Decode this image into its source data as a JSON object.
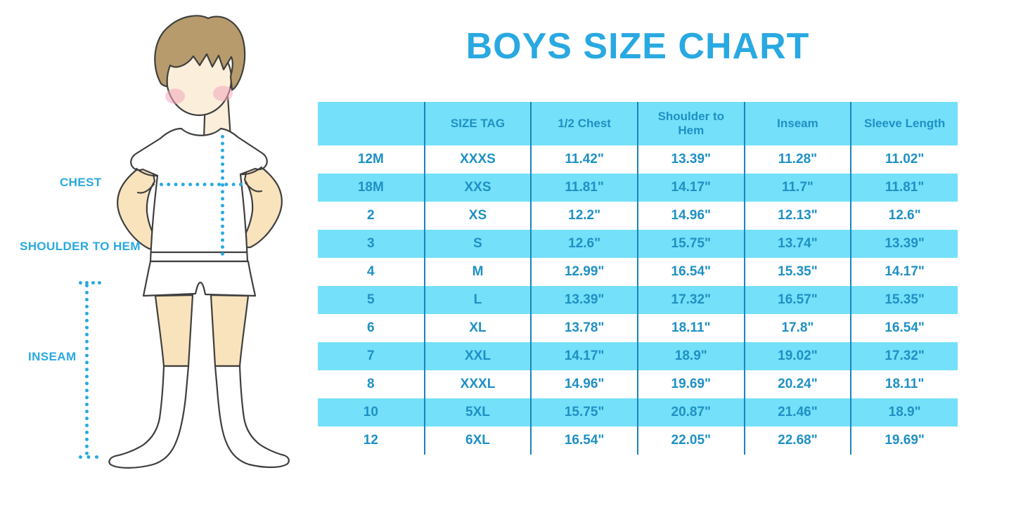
{
  "title": "BOYS SIZE CHART",
  "figure": {
    "labels": {
      "chest": "CHEST",
      "shoulder_to_hem": "SHOULDER TO HEM",
      "inseam": "INSEAM"
    }
  },
  "colors": {
    "title_blue": "#29A9E1",
    "table_band": "#74E0F9",
    "table_text": "#1E90C4",
    "divider": "#1A84BC",
    "dotted_line": "#29A9E1",
    "figure_outline": "#3F3F3F",
    "figure_skin": "#F8E3BC",
    "figure_face": "#FBEEDA",
    "figure_hair": "#B79B6C",
    "figure_blush": "#F2A7BC"
  },
  "chart_data": {
    "type": "table",
    "title": "BOYS SIZE CHART",
    "units": "inches",
    "columns": [
      "",
      "SIZE TAG",
      "1/2 Chest",
      "Shoulder to Hem",
      "Inseam",
      "Sleeve Length"
    ],
    "rows": [
      [
        "12M",
        "XXXS",
        "11.42\"",
        "13.39\"",
        "11.28\"",
        "11.02\""
      ],
      [
        "18M",
        "XXS",
        "11.81\"",
        "14.17\"",
        "11.7\"",
        "11.81\""
      ],
      [
        "2",
        "XS",
        "12.2\"",
        "14.96\"",
        "12.13\"",
        "12.6\""
      ],
      [
        "3",
        "S",
        "12.6\"",
        "15.75\"",
        "13.74\"",
        "13.39\""
      ],
      [
        "4",
        "M",
        "12.99\"",
        "16.54\"",
        "15.35\"",
        "14.17\""
      ],
      [
        "5",
        "L",
        "13.39\"",
        "17.32\"",
        "16.57\"",
        "15.35\""
      ],
      [
        "6",
        "XL",
        "13.78\"",
        "18.11\"",
        "17.8\"",
        "16.54\""
      ],
      [
        "7",
        "XXL",
        "14.17\"",
        "18.9\"",
        "19.02\"",
        "17.32\""
      ],
      [
        "8",
        "XXXL",
        "14.96\"",
        "19.69\"",
        "20.24\"",
        "18.11\""
      ],
      [
        "10",
        "5XL",
        "15.75\"",
        "20.87\"",
        "21.46\"",
        "18.9\""
      ],
      [
        "12",
        "6XL",
        "16.54\"",
        "22.05\"",
        "22.68\"",
        "19.69\""
      ]
    ],
    "layout": {
      "header_background": "light-cyan band",
      "row_shading": "alternating white / light-cyan starting with white",
      "column_dividers": "vertical blue lines between columns only"
    }
  }
}
